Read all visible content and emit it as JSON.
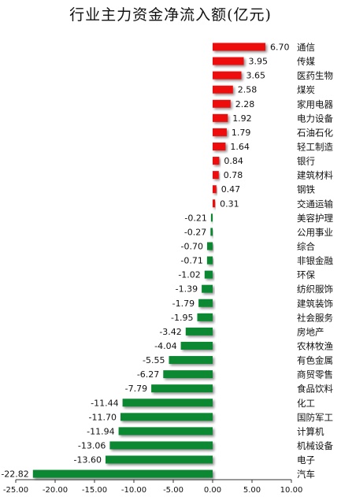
{
  "title": "行业主力资金净流入额(亿元)",
  "colors": {
    "positive": "#ee1111",
    "negative": "#118833"
  },
  "chart_data": {
    "type": "bar",
    "orientation": "horizontal",
    "title": "行业主力资金净流入额(亿元)",
    "xlim": [
      -25,
      10
    ],
    "x_ticks": [
      "-25.00",
      "-20.00",
      "-15.00",
      "-10.00",
      "-5.00",
      "0.00",
      "5.00",
      "10.00"
    ],
    "grid": false,
    "categories": [
      "通信",
      "传媒",
      "医药生物",
      "煤炭",
      "家用电器",
      "电力设备",
      "石油石化",
      "轻工制造",
      "银行",
      "建筑材料",
      "钢铁",
      "交通运输",
      "美容护理",
      "公用事业",
      "综合",
      "非银金融",
      "环保",
      "纺织服饰",
      "建筑装饰",
      "社会服务",
      "房地产",
      "农林牧渔",
      "有色金属",
      "商贸零售",
      "食品饮料",
      "化工",
      "国防军工",
      "计算机",
      "机械设备",
      "电子",
      "汽车"
    ],
    "values": [
      6.7,
      3.95,
      3.65,
      2.58,
      2.28,
      1.92,
      1.79,
      1.64,
      0.84,
      0.78,
      0.47,
      0.31,
      -0.21,
      -0.27,
      -0.7,
      -0.71,
      -1.02,
      -1.39,
      -1.79,
      -1.95,
      -3.42,
      -4.04,
      -5.55,
      -6.27,
      -7.79,
      -11.44,
      -11.7,
      -11.94,
      -13.06,
      -13.6,
      -22.82
    ],
    "value_labels": [
      "6.70",
      "3.95",
      "3.65",
      "2.58",
      "2.28",
      "1.92",
      "1.79",
      "1.64",
      "0.84",
      "0.78",
      "0.47",
      "0.31",
      "-0.21",
      "-0.27",
      "-0.70",
      "-0.71",
      "-1.02",
      "-1.39",
      "-1.79",
      "-1.95",
      "-3.42",
      "-4.04",
      "-5.55",
      "-6.27",
      "-7.79",
      "-11.44",
      "-11.70",
      "-11.94",
      "-13.06",
      "-13.60",
      "-22.82"
    ]
  }
}
